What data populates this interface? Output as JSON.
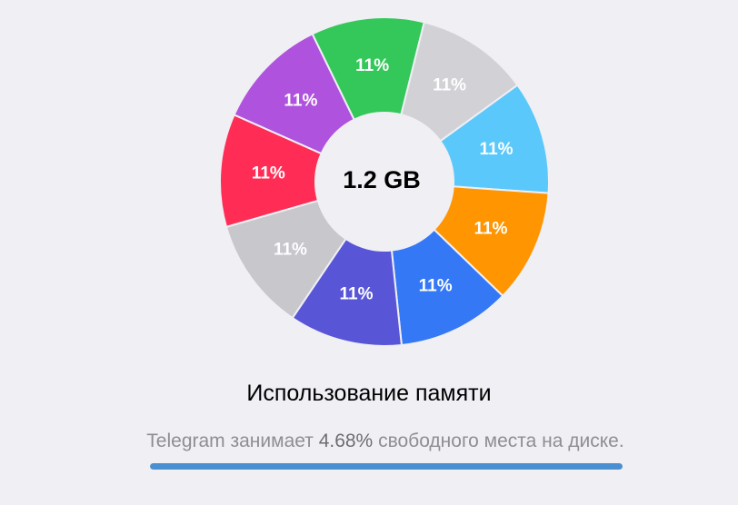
{
  "storage": {
    "total_label": "1.2 GB",
    "title": "Использование памяти",
    "subtitle_prefix": "Telegram занимает ",
    "subtitle_percent": "4.68%",
    "subtitle_suffix": " свободного места на диске.",
    "progress_value": 1.0,
    "progress_color": "#4a8fd1"
  },
  "chart_data": {
    "type": "pie",
    "variant": "donut",
    "center_label": "1.2 GB",
    "slices": [
      {
        "value": 11,
        "label": "11%",
        "color": "#ff2d55"
      },
      {
        "value": 11,
        "label": "11%",
        "color": "#af52de"
      },
      {
        "value": 11,
        "label": "11%",
        "color": "#34c759"
      },
      {
        "value": 11,
        "label": "11%",
        "color": "#d1d1d6"
      },
      {
        "value": 11,
        "label": "11%",
        "color": "#5ac8fa"
      },
      {
        "value": 11,
        "label": "11%",
        "color": "#ff9500"
      },
      {
        "value": 11,
        "label": "11%",
        "color": "#3478f6"
      },
      {
        "value": 11,
        "label": "11%",
        "color": "#5856d6"
      },
      {
        "value": 11,
        "label": "11%",
        "color": "#c7c7cc"
      }
    ]
  }
}
